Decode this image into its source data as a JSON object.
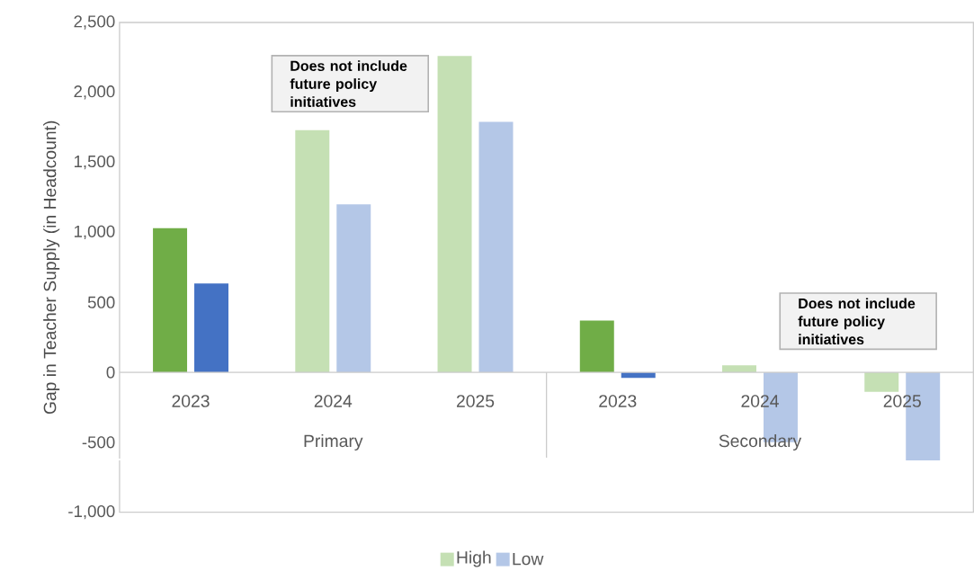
{
  "chart_data": {
    "type": "bar",
    "ylabel": "Gap in Teacher Supply (in Headcount)",
    "categories": [
      "2023",
      "2024",
      "2025",
      "2023",
      "2024",
      "2025"
    ],
    "series": [
      {
        "name": "High",
        "color": "#c5e0b4",
        "colors": [
          "#70ad47",
          "#c5e0b4",
          "#c5e0b4",
          "#70ad47",
          "#c5e0b4",
          "#c5e0b4"
        ],
        "values": [
          1030,
          1730,
          2260,
          370,
          50,
          -140
        ]
      },
      {
        "name": "Low",
        "color": "#b4c7e7",
        "colors": [
          "#4472c4",
          "#b4c7e7",
          "#b4c7e7",
          "#4472c4",
          "#b4c7e7",
          "#b4c7e7"
        ],
        "values": [
          635,
          1200,
          1790,
          -40,
          -500,
          -630
        ]
      }
    ],
    "ylim": [
      -1000,
      2500
    ],
    "yticks": [
      {
        "value": -1000,
        "label": "-1,000"
      },
      {
        "value": -500,
        "label": "-500"
      },
      0,
      500,
      {
        "value": 1000,
        "label": "1,000"
      },
      {
        "value": 1500,
        "label": "1,500"
      },
      {
        "value": 2000,
        "label": "2,000"
      },
      {
        "value": 2500,
        "label": "2,500"
      }
    ],
    "annotations": [
      "Does not include future policy initiatives",
      "Does not include future policy initiatives",
      "Primary",
      "Secondary"
    ],
    "legend": "bottom"
  }
}
